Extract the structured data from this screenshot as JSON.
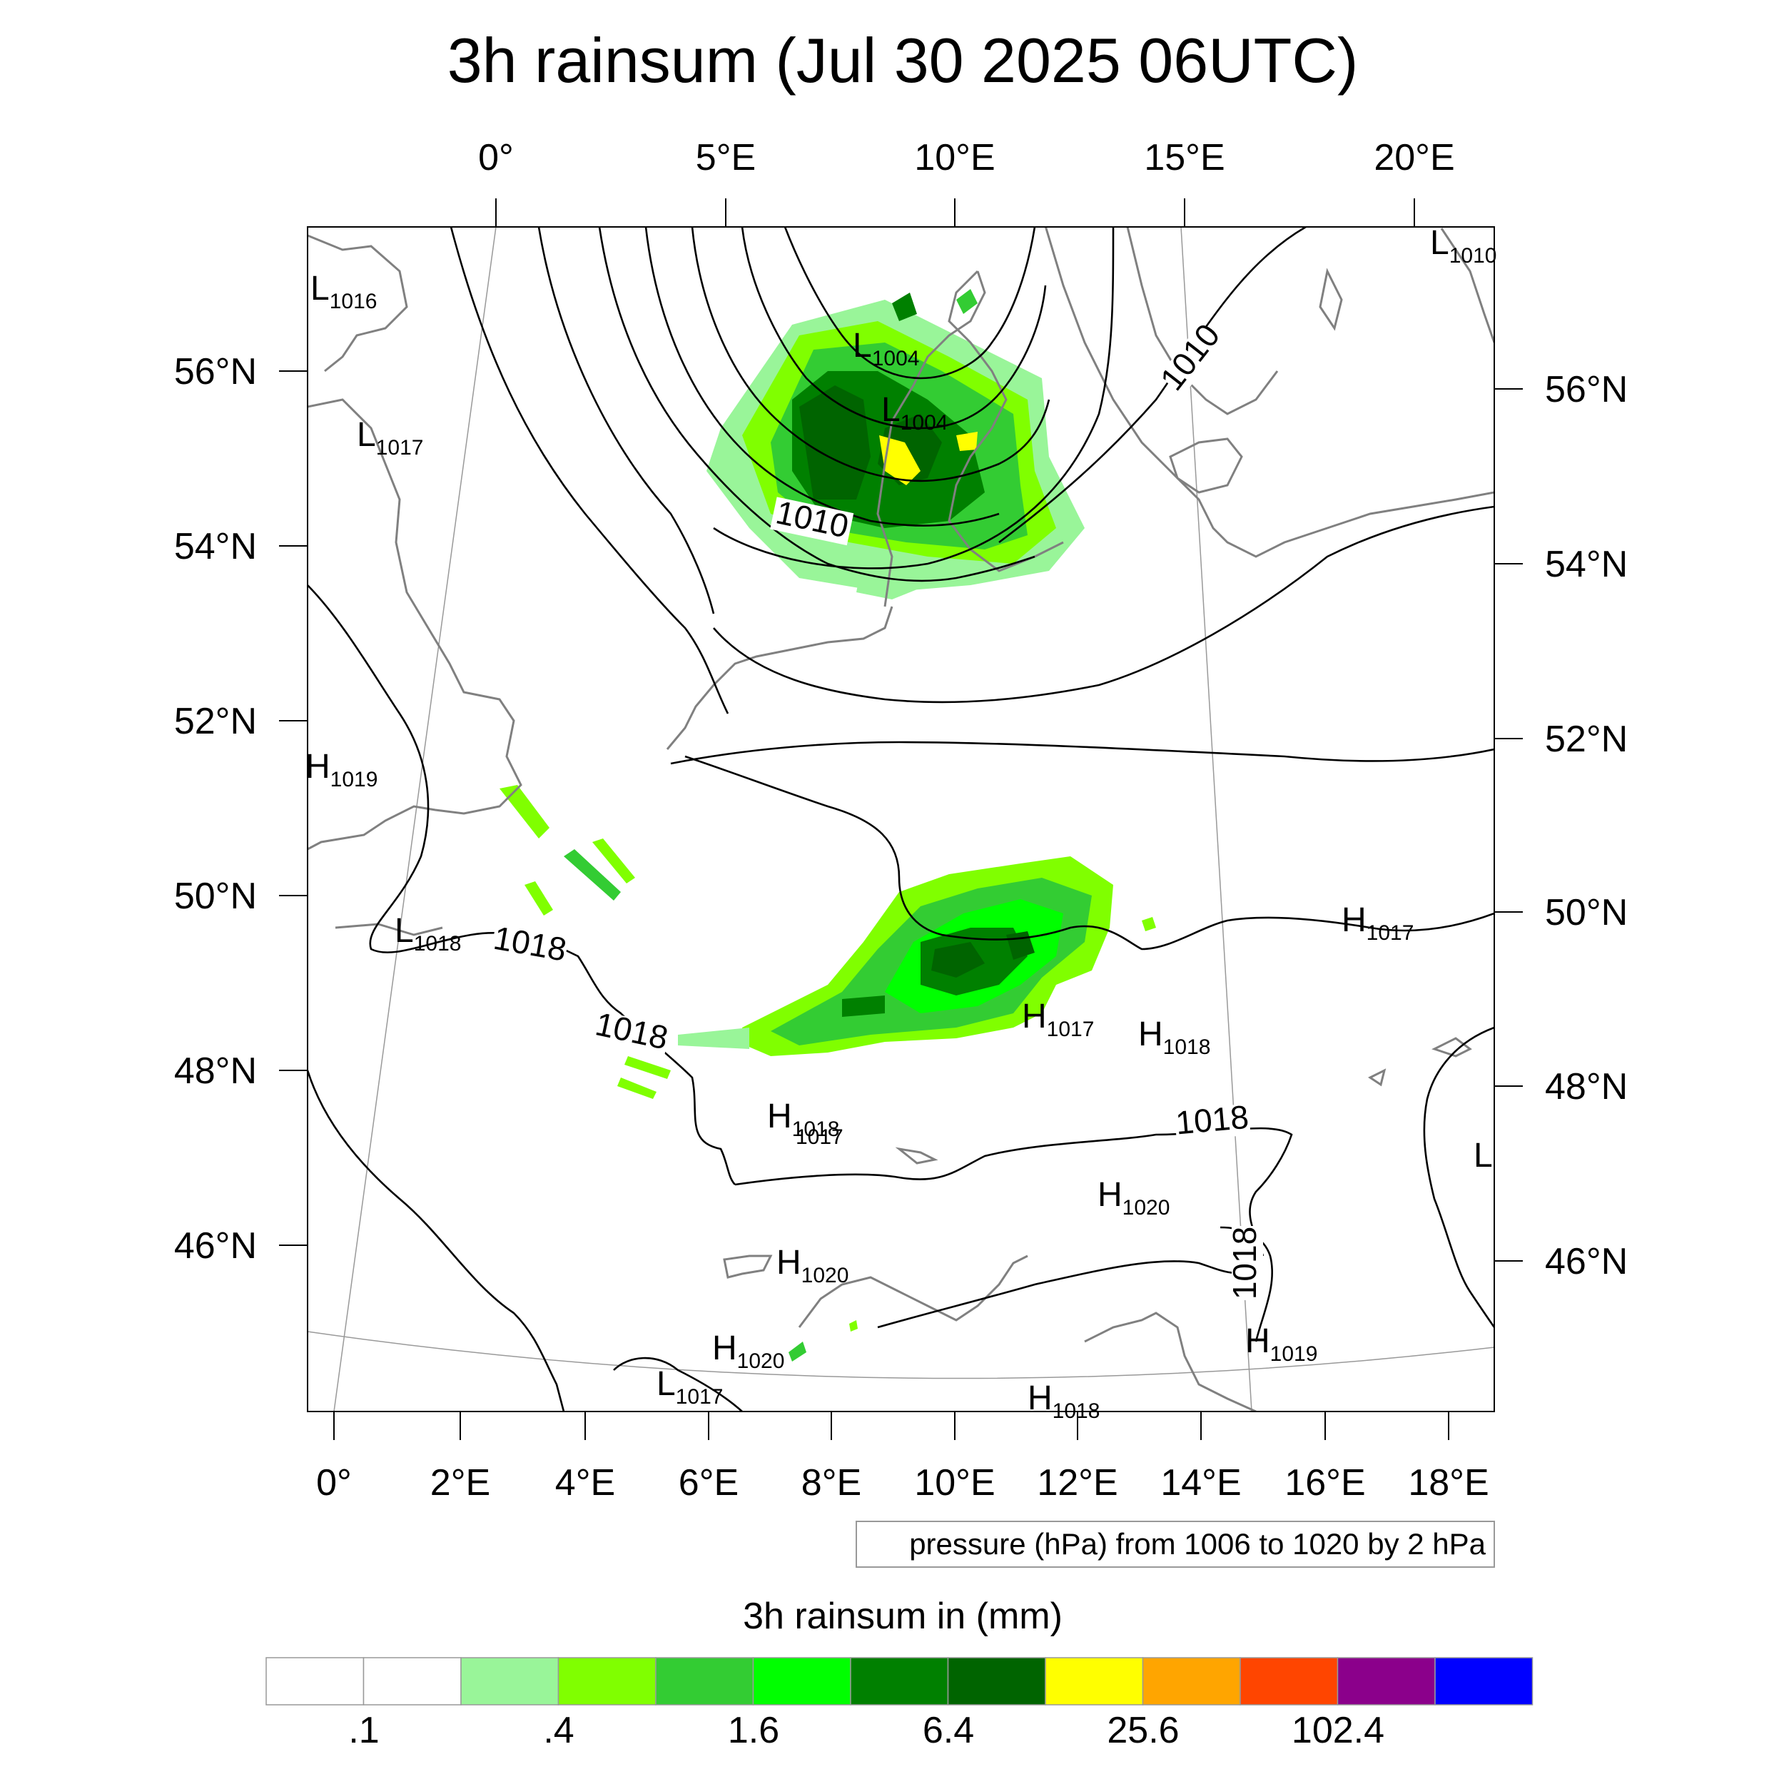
{
  "title": "3h rainsum (Jul 30 2025 06UTC)",
  "map": {
    "top_ticks": [
      "0°",
      "5°E",
      "10°E",
      "15°E",
      "20°E"
    ],
    "bottom_ticks": [
      "0°",
      "2°E",
      "4°E",
      "6°E",
      "8°E",
      "10°E",
      "12°E",
      "14°E",
      "16°E",
      "18°E"
    ],
    "left_ticks": [
      "56°N",
      "54°N",
      "52°N",
      "50°N",
      "48°N",
      "46°N"
    ],
    "right_ticks": [
      "56°N",
      "54°N",
      "52°N",
      "50°N",
      "48°N",
      "46°N"
    ],
    "pressure_centers": [
      {
        "type": "L",
        "value": "1010"
      },
      {
        "type": "L",
        "value": "1016"
      },
      {
        "type": "L",
        "value": "1004"
      },
      {
        "type": "L",
        "value": "1004"
      },
      {
        "type": "L",
        "value": "1017"
      },
      {
        "type": "H",
        "value": "1019"
      },
      {
        "type": "L",
        "value": "1018"
      },
      {
        "type": "H",
        "value": "1017"
      },
      {
        "type": "H",
        "value": "1017"
      },
      {
        "type": "H",
        "value": "1018"
      },
      {
        "type": "H",
        "value": "1018"
      },
      {
        "type": "H",
        "value": "1020"
      },
      {
        "type": "H",
        "value": "1020"
      },
      {
        "type": "H",
        "value": "1020"
      },
      {
        "type": "H",
        "value": "1019"
      },
      {
        "type": "L",
        "value": "1017"
      },
      {
        "type": "H",
        "value": "1018"
      },
      {
        "type": "L",
        "value": ""
      }
    ],
    "contour_labels": [
      "1010",
      "1010",
      "1018",
      "1018",
      "1018",
      "1018",
      "1017"
    ]
  },
  "info_box": "pressure (hPa) from 1006 to 1020 by 2 hPa",
  "colorbar": {
    "title": "3h rainsum in (mm)",
    "colors": [
      "#ffffff",
      "#ffffff",
      "#99f599",
      "#80ff00",
      "#33cc33",
      "#00ff00",
      "#008000",
      "#006400",
      "#ffff00",
      "#ffa500",
      "#ff4500",
      "#8b008b",
      "#0000ff"
    ],
    "labels": [
      ".1",
      ".4",
      "1.6",
      "6.4",
      "25.6",
      "102.4"
    ]
  }
}
